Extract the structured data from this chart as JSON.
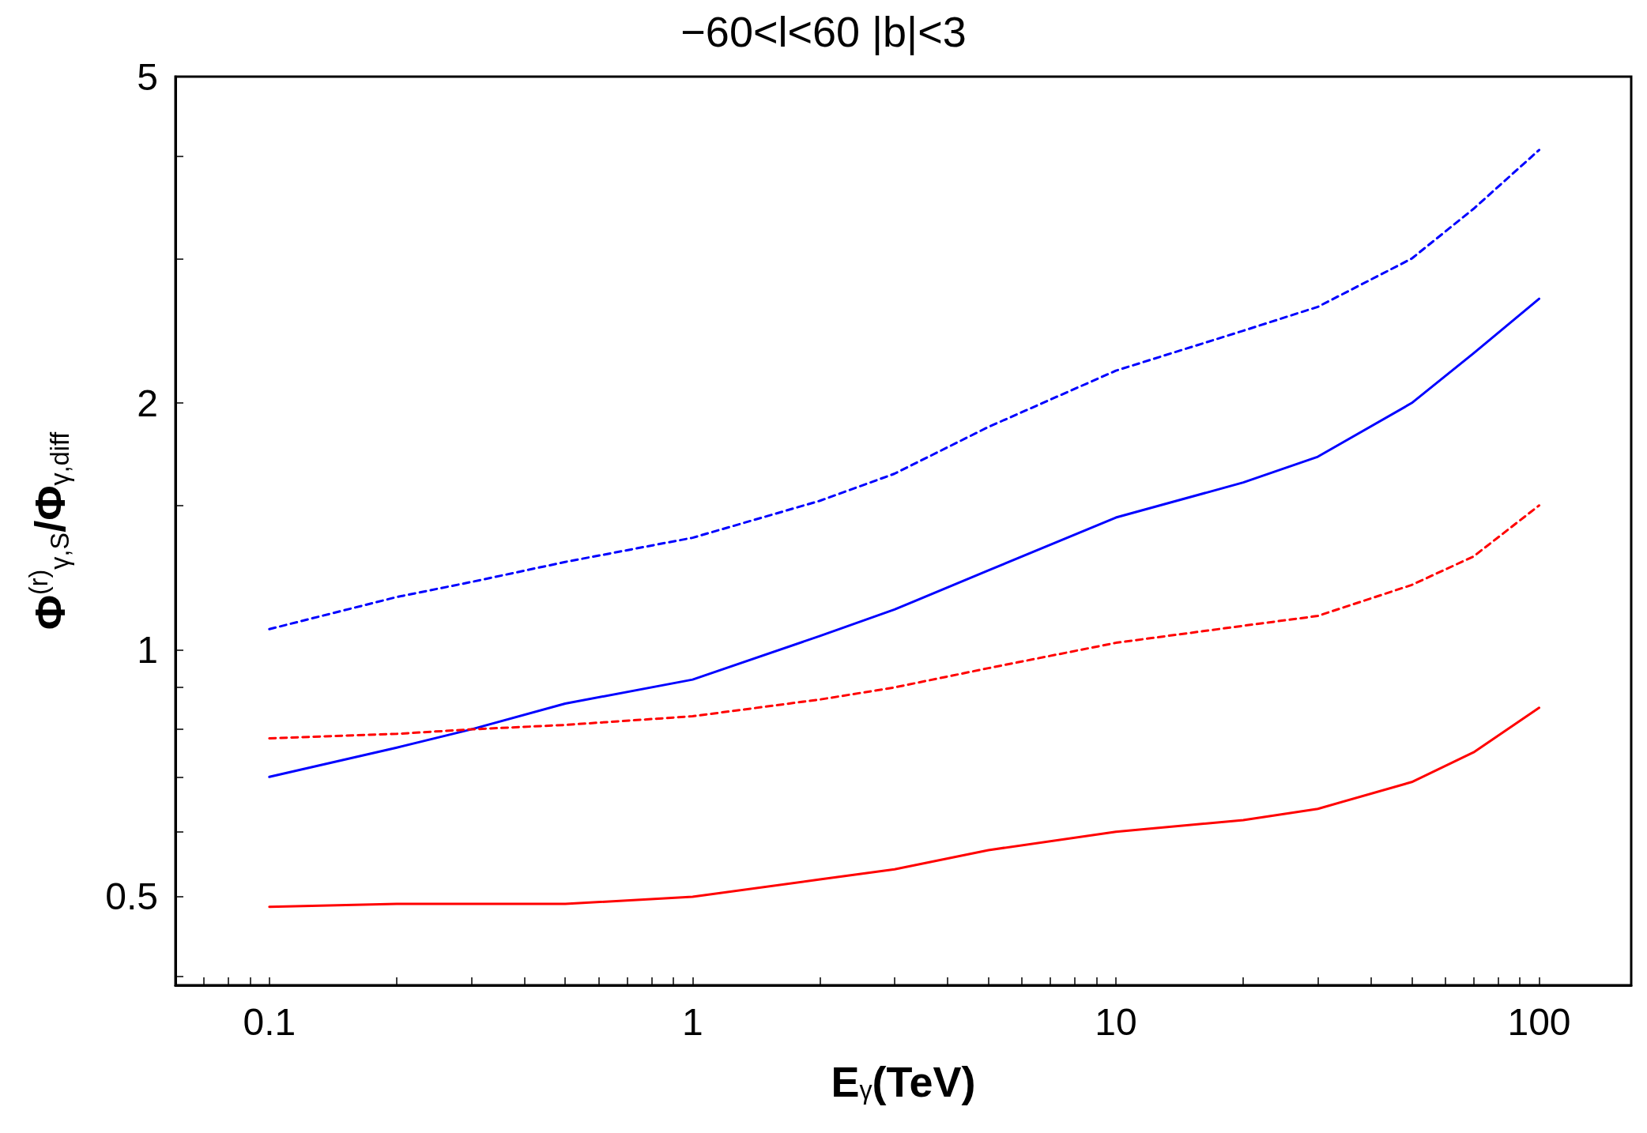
{
  "chart_data": {
    "type": "line",
    "title": "−60<l<60 |b|<3",
    "xlabel": "E$_{γ}$(TeV)",
    "ylabel": "Φ$^{(r)}$$_{γ,S}$/Φ$_{γ,diff}$",
    "log": "xy",
    "grid": false,
    "marker": "none",
    "xlim": [
      0.06,
      165
    ],
    "ylim": [
      0.39,
      5
    ],
    "xticks": [
      {
        "value": 0.07,
        "label": null
      },
      {
        "value": 0.08,
        "label": null
      },
      {
        "value": 0.09,
        "label": null
      },
      0.1,
      {
        "value": 0.2,
        "label": null
      },
      {
        "value": 0.3,
        "label": null
      },
      {
        "value": 0.4,
        "label": null
      },
      {
        "value": 0.5,
        "label": null
      },
      {
        "value": 0.6,
        "label": null
      },
      {
        "value": 0.7,
        "label": null
      },
      {
        "value": 0.8,
        "label": null
      },
      {
        "value": 0.9,
        "label": null
      },
      1,
      {
        "value": 2,
        "label": null
      },
      {
        "value": 3,
        "label": null
      },
      {
        "value": 4,
        "label": null
      },
      {
        "value": 5,
        "label": null
      },
      {
        "value": 6,
        "label": null
      },
      {
        "value": 7,
        "label": null
      },
      {
        "value": 8,
        "label": null
      },
      {
        "value": 9,
        "label": null
      },
      10,
      {
        "value": 20,
        "label": null
      },
      {
        "value": 30,
        "label": null
      },
      {
        "value": 40,
        "label": null
      },
      {
        "value": 50,
        "label": null
      },
      {
        "value": 60,
        "label": null
      },
      {
        "value": 70,
        "label": null
      },
      {
        "value": 80,
        "label": null
      },
      {
        "value": 90,
        "label": null
      },
      100
    ],
    "yticks": [
      {
        "value": 0.4,
        "label": null
      },
      0.5,
      {
        "value": 0.6,
        "label": null
      },
      {
        "value": 0.7,
        "label": null
      },
      {
        "value": 0.8,
        "label": null
      },
      {
        "value": 0.9,
        "label": null
      },
      1,
      {
        "value": 1.5,
        "label": null
      },
      2,
      {
        "value": 3,
        "label": null
      },
      {
        "value": 4,
        "label": null
      },
      5
    ],
    "x": [
      0.1,
      0.2,
      0.3,
      0.5,
      1,
      2,
      3,
      5,
      10,
      20,
      30,
      50,
      70,
      100
    ],
    "series": [
      {
        "color": "#0000ff",
        "line_style": "dashed",
        "values": [
          1.06,
          1.16,
          1.21,
          1.28,
          1.37,
          1.52,
          1.64,
          1.87,
          2.19,
          2.45,
          2.62,
          3.0,
          3.45,
          4.07
        ]
      },
      {
        "color": "#0000ff",
        "line_style": "solid",
        "values": [
          0.7,
          0.76,
          0.8,
          0.86,
          0.92,
          1.04,
          1.12,
          1.25,
          1.45,
          1.6,
          1.72,
          2.0,
          2.3,
          2.68
        ]
      },
      {
        "color": "#ff0000",
        "line_style": "dashed",
        "values": [
          0.78,
          0.79,
          0.8,
          0.81,
          0.83,
          0.87,
          0.9,
          0.95,
          1.02,
          1.07,
          1.1,
          1.2,
          1.3,
          1.5
        ]
      },
      {
        "color": "#ff0000",
        "line_style": "solid",
        "values": [
          0.486,
          0.49,
          0.49,
          0.49,
          0.5,
          0.525,
          0.54,
          0.57,
          0.6,
          0.62,
          0.64,
          0.69,
          0.75,
          0.85
        ]
      }
    ]
  }
}
